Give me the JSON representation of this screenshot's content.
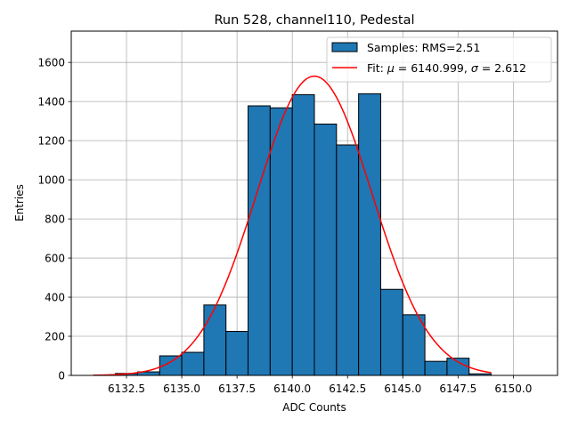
{
  "chart_data": {
    "type": "bar",
    "title": "Run 528, channel110, Pedestal",
    "xlabel": "ADC Counts",
    "ylabel": "Entries",
    "xlim": [
      6130.0,
      6152.0
    ],
    "ylim": [
      0,
      1760
    ],
    "grid": true,
    "legend_position": "top-right",
    "xticks": [
      6132.5,
      6135.0,
      6137.5,
      6140.0,
      6142.5,
      6145.0,
      6147.5,
      6150.0
    ],
    "yticks": [
      0,
      200,
      400,
      600,
      800,
      1000,
      1200,
      1400,
      1600
    ],
    "bin_width": 1.0,
    "series": [
      {
        "name": "Samples: RMS=2.51",
        "kind": "histogram",
        "color": "#1f77b4",
        "edgecolor": "#000000",
        "bin_left_edges": [
          6132,
          6133,
          6134,
          6135,
          6136,
          6137,
          6138,
          6139,
          6140,
          6141,
          6142,
          6143,
          6144,
          6145,
          6146,
          6147,
          6148
        ],
        "values": [
          10,
          18,
          100,
          118,
          360,
          225,
          1378,
          1368,
          1435,
          1285,
          1178,
          1440,
          440,
          310,
          72,
          88,
          8
        ]
      },
      {
        "name": "Fit: μ = 6140.999, σ = 2.612",
        "kind": "gaussian-fit",
        "color": "#ff0000",
        "mu": 6140.999,
        "sigma": 2.612,
        "amplitude": 1530,
        "x_range": [
          6131.0,
          6149.0
        ]
      }
    ],
    "legend": [
      {
        "label": "Samples: RMS=2.51",
        "marker": "patch",
        "color": "#1f77b4"
      },
      {
        "label_prefix": "Fit: ",
        "mu_symbol": "μ",
        "mu_text": " = 6140.999, ",
        "sigma_symbol": "σ",
        "sigma_text": " = 2.612",
        "marker": "line",
        "color": "#ff0000"
      }
    ]
  }
}
